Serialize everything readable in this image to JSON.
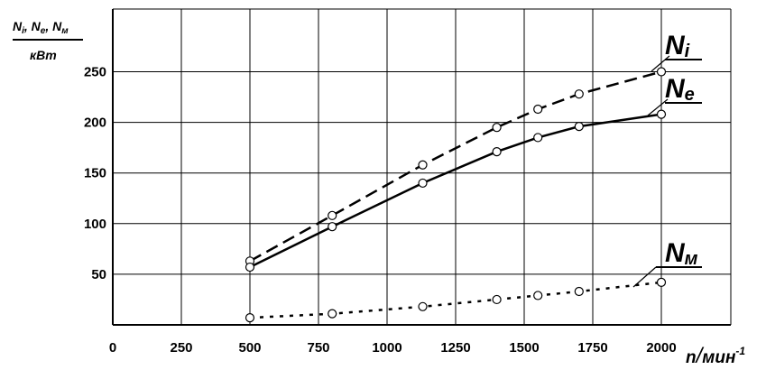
{
  "chart_data": {
    "type": "line",
    "ylabel_parts": [
      "N",
      "i",
      ", N",
      "e",
      ", N",
      "м"
    ],
    "yunit": "кВт",
    "xlabel_parts": [
      "n",
      "/",
      "мин",
      "-1"
    ],
    "xlim": [
      0,
      2000
    ],
    "ylim": [
      0,
      280
    ],
    "x_ticks": [
      "0",
      "250",
      "500",
      "750",
      "1000",
      "1250",
      "1500",
      "1750",
      "2000"
    ],
    "y_ticks": [
      "50",
      "100",
      "150",
      "200",
      "250"
    ],
    "grid": true,
    "series": [
      {
        "name": "Ni",
        "name_main": "N",
        "name_sub": "i",
        "style": "dashed",
        "x": [
          500,
          800,
          1130,
          1400,
          1550,
          1700,
          2000
        ],
        "y": [
          63,
          108,
          158,
          195,
          213,
          228,
          250
        ]
      },
      {
        "name": "Ne",
        "name_main": "N",
        "name_sub": "e",
        "style": "solid",
        "x": [
          500,
          800,
          1130,
          1400,
          1550,
          1700,
          2000
        ],
        "y": [
          57,
          97,
          140,
          171,
          185,
          196,
          208
        ]
      },
      {
        "name": "Nм",
        "name_main": "N",
        "name_sub": "м",
        "style": "dotted",
        "x": [
          500,
          800,
          1130,
          1400,
          1550,
          1700,
          2000
        ],
        "y": [
          7,
          11,
          18,
          25,
          29,
          33,
          42
        ]
      }
    ]
  }
}
